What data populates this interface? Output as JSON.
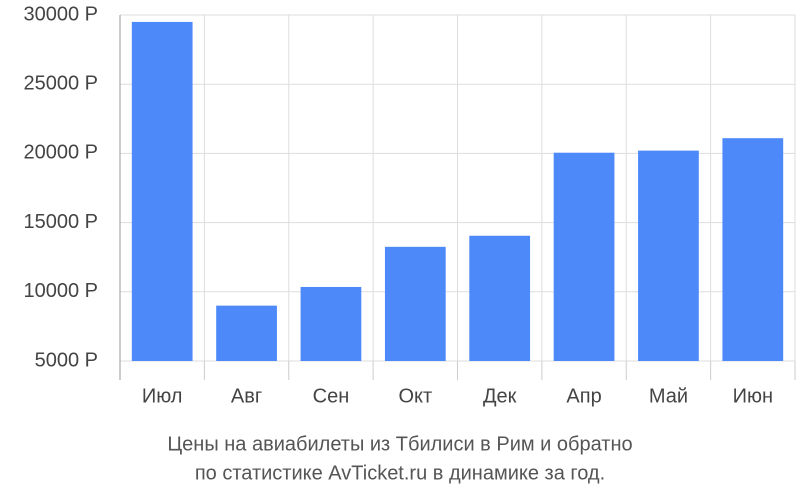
{
  "chart_data": {
    "type": "bar",
    "title": [
      "Цены на авиабилеты из Тбилиси в Рим и обратно",
      "по статистике AvTicket.ru в динамике за год."
    ],
    "categories": [
      "Июл",
      "Авг",
      "Сен",
      "Окт",
      "Дек",
      "Апр",
      "Май",
      "Июн"
    ],
    "values": [
      29500,
      9000,
      10350,
      13250,
      14050,
      20050,
      20200,
      21100
    ],
    "color": "#4d89f9",
    "ylim": [
      5000,
      30000
    ],
    "yticks": [
      {
        "value": 5000,
        "label": "5000 Р"
      },
      {
        "value": 10000,
        "label": "10000 Р"
      },
      {
        "value": 15000,
        "label": "15000 Р"
      },
      {
        "value": 20000,
        "label": "20000 Р"
      },
      {
        "value": 25000,
        "label": "25000 Р"
      },
      {
        "value": 30000,
        "label": "30000 Р"
      }
    ],
    "grid": true
  }
}
